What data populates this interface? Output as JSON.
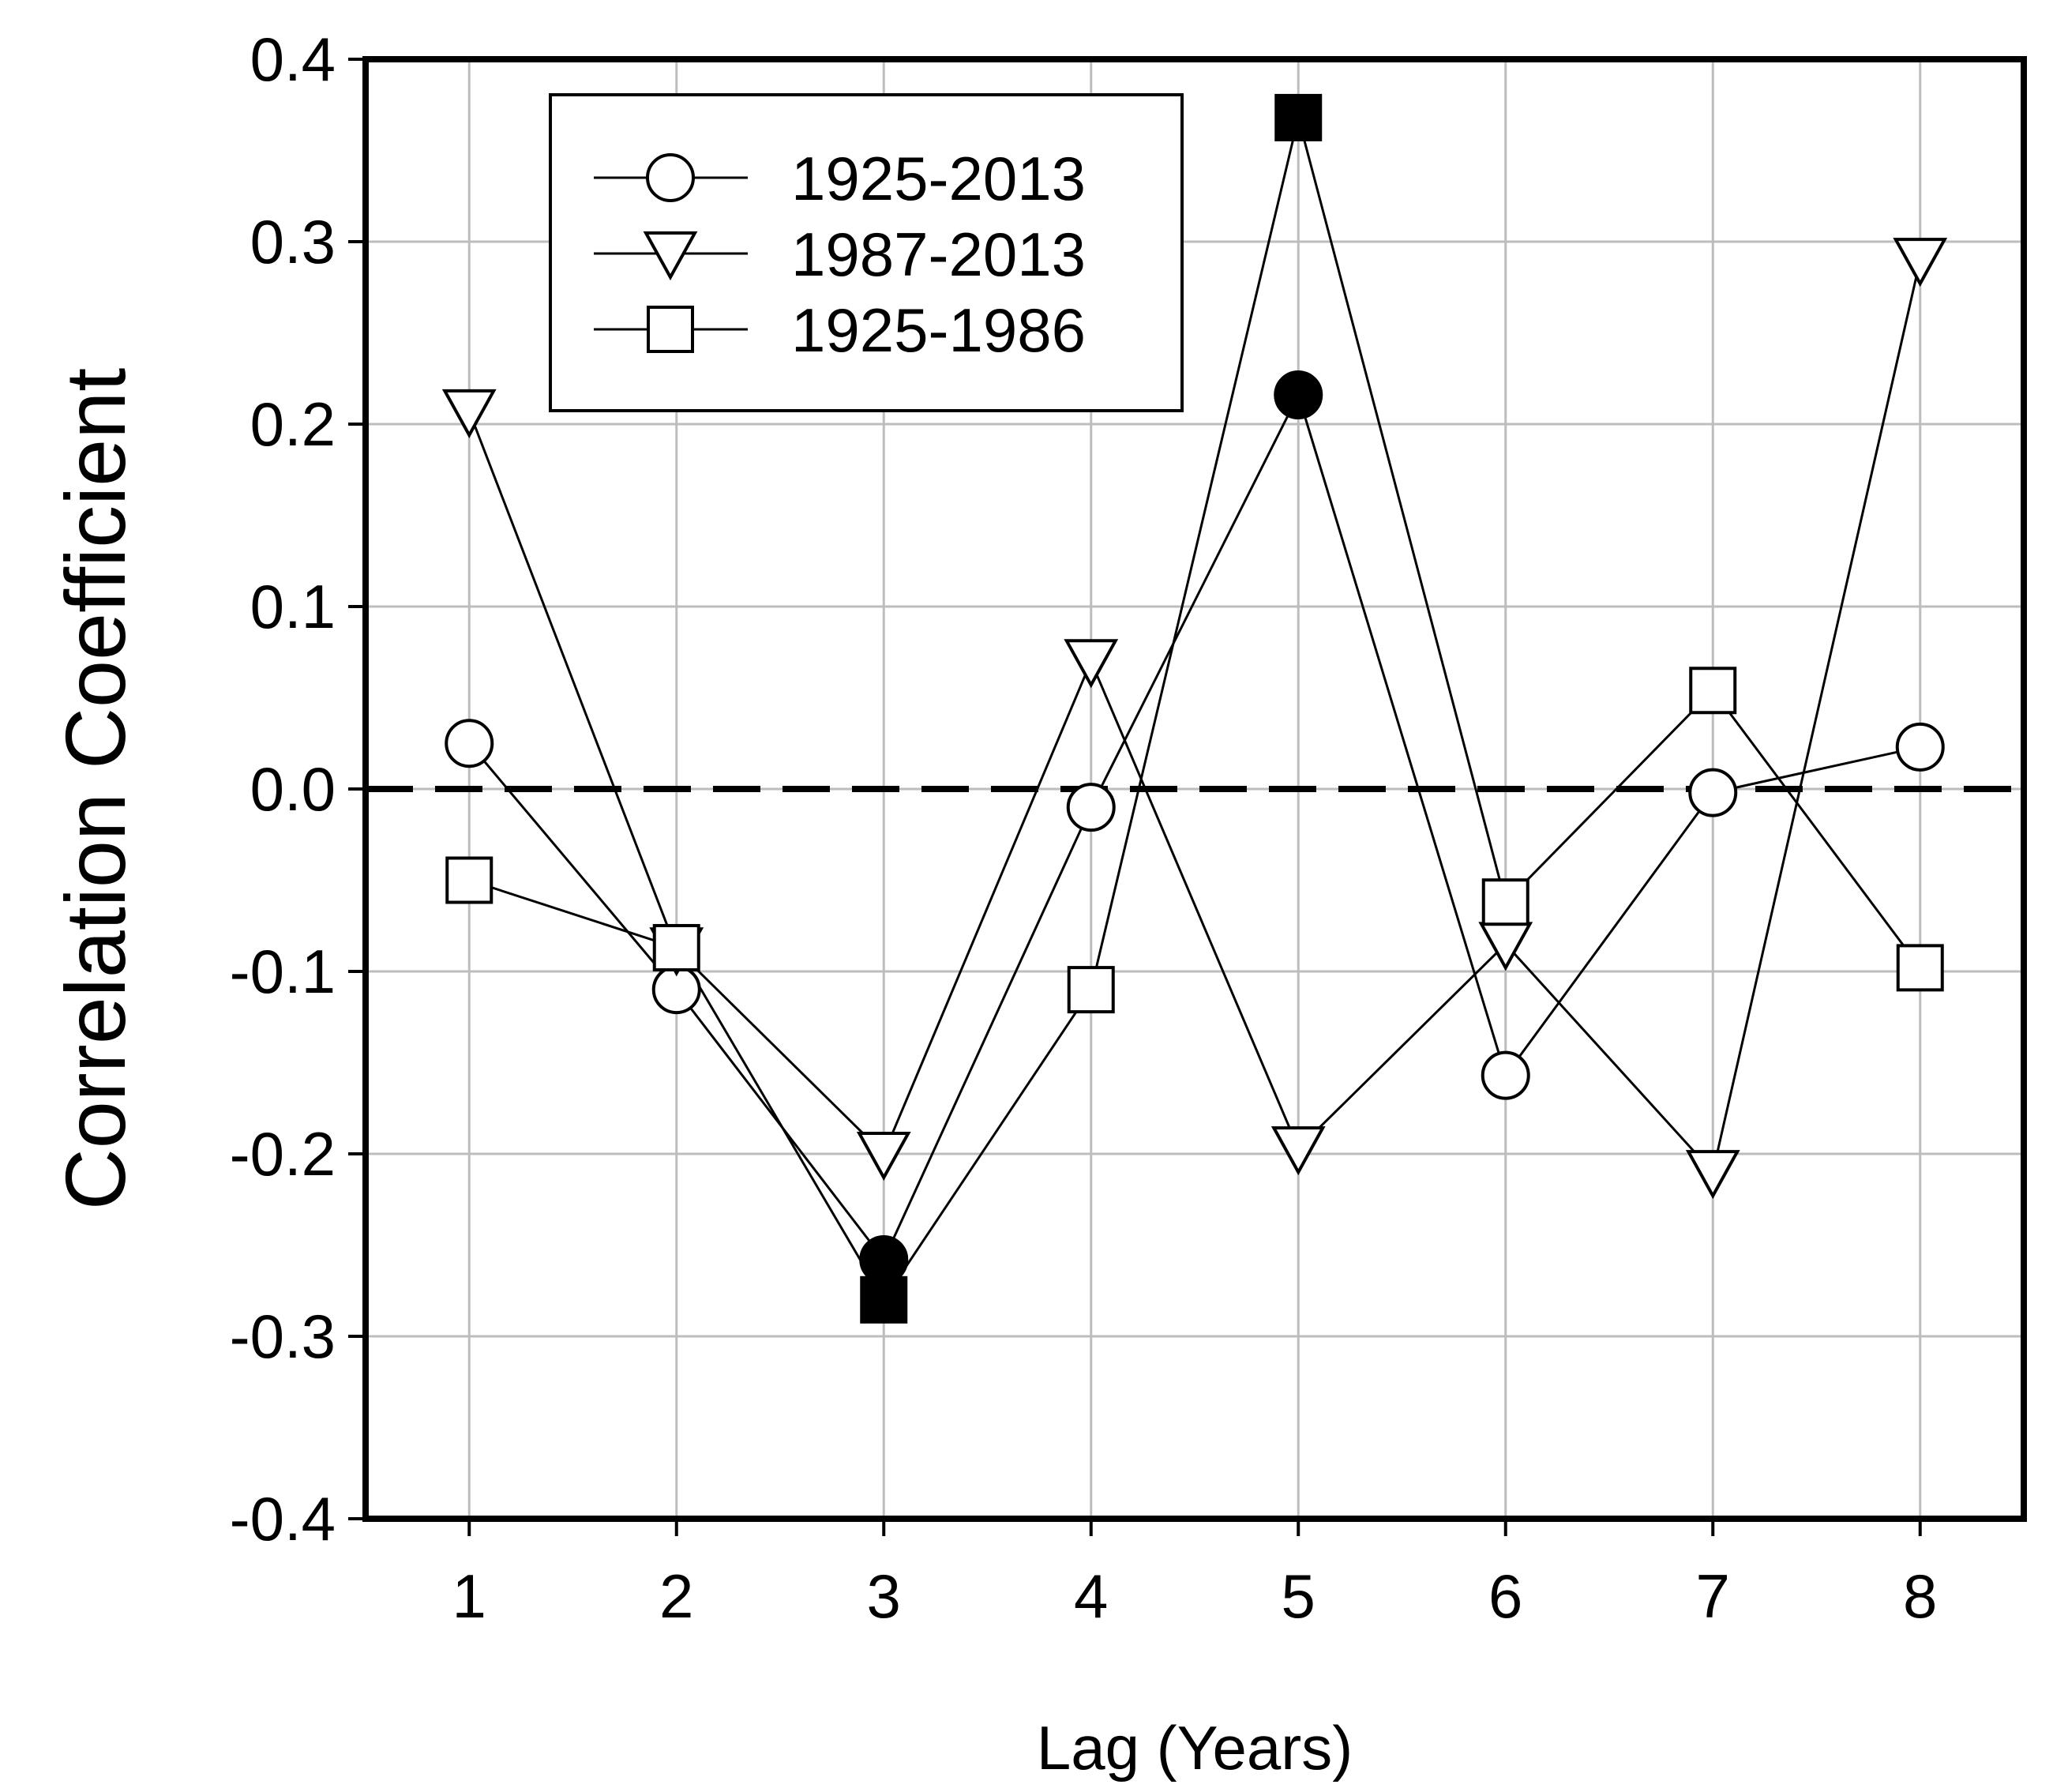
{
  "chart_data": {
    "type": "line",
    "xlabel": "Lag (Years)",
    "ylabel": "Correlation  Coefficient",
    "x": [
      1,
      2,
      3,
      4,
      5,
      6,
      7,
      8
    ],
    "xticks": [
      "1",
      "2",
      "3",
      "4",
      "5",
      "6",
      "7",
      "8"
    ],
    "yticks": [
      "-0.4",
      "-0.3",
      "-0.2",
      "-0.1",
      "0.0",
      "0.1",
      "0.2",
      "0.3",
      "0.4"
    ],
    "ylim": [
      -0.4,
      0.4
    ],
    "xlim": [
      0.5,
      8.5
    ],
    "grid": true,
    "legend_position": "top-left",
    "reference_line": {
      "y": 0.0,
      "style": "dashed"
    },
    "series": [
      {
        "name": "1925-2013",
        "marker": "circle",
        "values": [
          0.025,
          -0.11,
          -0.258,
          -0.01,
          0.216,
          -0.157,
          -0.002,
          0.023
        ],
        "filled": [
          false,
          false,
          true,
          false,
          true,
          false,
          false,
          false
        ]
      },
      {
        "name": "1987-2013",
        "marker": "triangle-down",
        "values": [
          0.207,
          -0.088,
          -0.2,
          0.07,
          -0.197,
          -0.085,
          -0.21,
          0.29
        ],
        "filled": [
          false,
          false,
          false,
          false,
          false,
          false,
          false,
          false
        ]
      },
      {
        "name": "1925-1986",
        "marker": "square",
        "values": [
          -0.05,
          -0.087,
          -0.28,
          -0.11,
          0.368,
          -0.062,
          0.054,
          -0.098
        ],
        "filled": [
          false,
          false,
          true,
          false,
          true,
          false,
          false,
          false
        ]
      }
    ]
  }
}
